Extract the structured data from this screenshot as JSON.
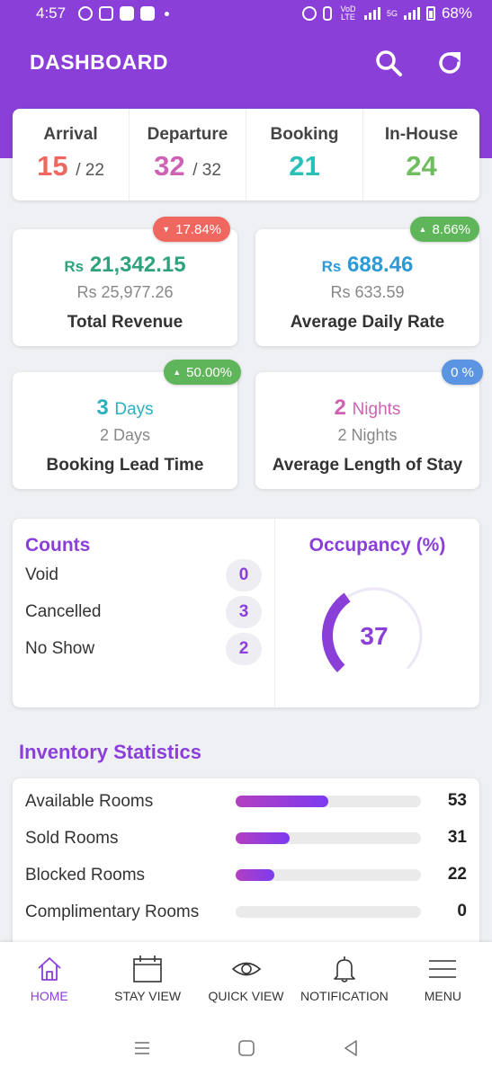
{
  "status_bar": {
    "time": "4:57",
    "battery": "68%",
    "net_a": "VoD LTE",
    "net_b": "5G"
  },
  "header": {
    "title": "DASHBOARD"
  },
  "stats": [
    {
      "label": "Arrival",
      "value": "15",
      "total": "/ 22",
      "color": "#f0675f"
    },
    {
      "label": "Departure",
      "value": "32",
      "total": "/ 32",
      "color": "#d062b4"
    },
    {
      "label": "Booking",
      "value": "21",
      "total": "",
      "color": "#2bc0b7"
    },
    {
      "label": "In-House",
      "value": "24",
      "total": "",
      "color": "#6fbd5e"
    }
  ],
  "metrics": {
    "revenue": {
      "badge": "17.84%",
      "badge_color": "#f0675f",
      "trend": "down",
      "currency": "Rs",
      "value": "21,342.15",
      "prev": "Rs 25,977.26",
      "label": "Total Revenue",
      "color": "#2ea37a"
    },
    "adr": {
      "badge": "8.66%",
      "badge_color": "#5fb65a",
      "trend": "up",
      "currency": "Rs",
      "value": "688.46",
      "prev": "Rs 633.59",
      "label": "Average Daily Rate",
      "color": "#2b9ad6"
    },
    "lead_time": {
      "badge": "50.00%",
      "badge_color": "#5fb65a",
      "trend": "up",
      "value": "3",
      "unit": "Days",
      "prev": "2 Days",
      "label": "Booking Lead Time",
      "color": "#2bb0c0"
    },
    "length_of_stay": {
      "badge": "0 %",
      "badge_color": "#5b94e3",
      "value": "2",
      "unit": "Nights",
      "prev": "2 Nights",
      "label": "Average Length of Stay",
      "color": "#d062b4"
    }
  },
  "counts": {
    "title": "Counts",
    "items": [
      {
        "label": "Void",
        "value": "0"
      },
      {
        "label": "Cancelled",
        "value": "3"
      },
      {
        "label": "No Show",
        "value": "2"
      }
    ]
  },
  "occupancy": {
    "title": "Occupancy (%)",
    "value": "37",
    "percent": 37
  },
  "inventory": {
    "title": "Inventory Statistics",
    "items": [
      {
        "label": "Available Rooms",
        "value": "53",
        "fraction": 0.5
      },
      {
        "label": "Sold Rooms",
        "value": "31",
        "fraction": 0.29
      },
      {
        "label": "Blocked Rooms",
        "value": "22",
        "fraction": 0.21
      },
      {
        "label": "Complimentary Rooms",
        "value": "0",
        "fraction": 0
      }
    ]
  },
  "nav": [
    {
      "label": "HOME",
      "icon": "home-icon"
    },
    {
      "label": "STAY VIEW",
      "icon": "calendar-icon"
    },
    {
      "label": "QUICK VIEW",
      "icon": "eye-icon"
    },
    {
      "label": "NOTIFICATION",
      "icon": "bell-icon"
    },
    {
      "label": "MENU",
      "icon": "menu-icon"
    }
  ],
  "colors": {
    "primary": "#8b3fd9"
  }
}
